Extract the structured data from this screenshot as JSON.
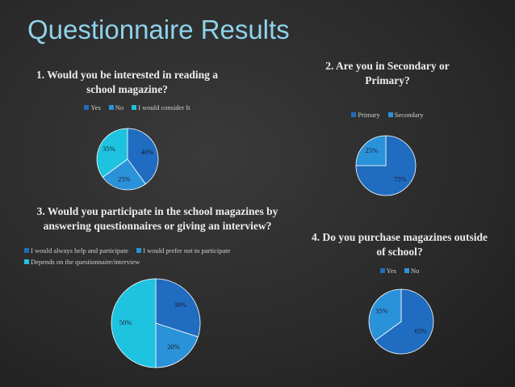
{
  "page": {
    "title": "Questionnaire Results"
  },
  "chart_data": [
    {
      "type": "pie",
      "title": "1. Would you be interested in reading a school magazine?",
      "categories": [
        "Yes",
        "No",
        "I would consider It"
      ],
      "values": [
        40,
        25,
        35
      ],
      "value_labels": [
        "40%",
        "25%",
        "35%"
      ],
      "colors": [
        "#1f6cc0",
        "#2a92d8",
        "#1ec3df"
      ]
    },
    {
      "type": "pie",
      "title": "2. Are you in Secondary or Primary?",
      "categories": [
        "Primary",
        "Secondary"
      ],
      "values": [
        75,
        25
      ],
      "value_labels": [
        "75%",
        "25%"
      ],
      "colors": [
        "#1f6cc0",
        "#2a92d8"
      ]
    },
    {
      "type": "pie",
      "title": "3. Would you participate in the school magazines by answering questionnaires or giving an interview?",
      "categories": [
        "I would always help and participate",
        "I would prefer not to participate",
        "Depends on the questionnaire/interview"
      ],
      "values": [
        30,
        20,
        50
      ],
      "value_labels": [
        "30%",
        "20%",
        "50%"
      ],
      "colors": [
        "#1f6cc0",
        "#2a92d8",
        "#1ec3df"
      ]
    },
    {
      "type": "pie",
      "title": "4. Do you purchase magazines outside of school?",
      "categories": [
        "Yes",
        "No"
      ],
      "values": [
        65,
        35
      ],
      "value_labels": [
        "65%",
        "35%"
      ],
      "colors": [
        "#1f6cc0",
        "#2a92d8"
      ]
    }
  ]
}
